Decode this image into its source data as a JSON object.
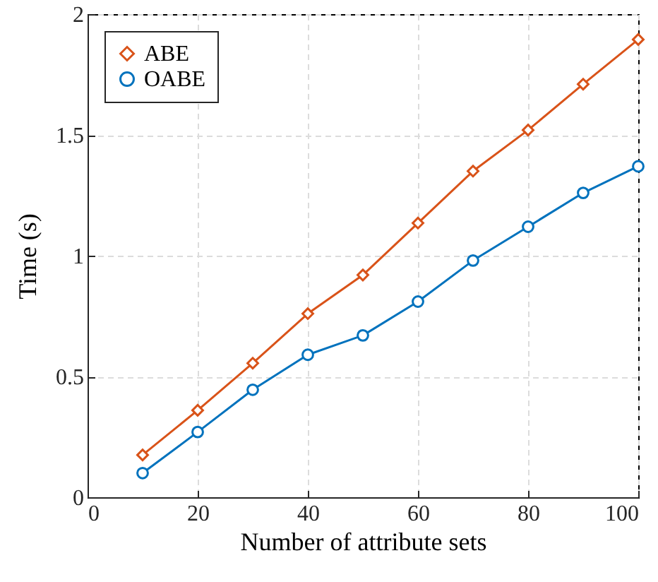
{
  "chart_data": {
    "type": "line",
    "xlabel": "Number of attribute sets",
    "ylabel": "Time (s)",
    "x": [
      10,
      20,
      30,
      40,
      50,
      60,
      70,
      80,
      90,
      100
    ],
    "series": [
      {
        "name": "ABE",
        "color": "#d95319",
        "marker": "diamond",
        "values": [
          0.175,
          0.36,
          0.555,
          0.76,
          0.92,
          1.135,
          1.35,
          1.52,
          1.71,
          1.895
        ]
      },
      {
        "name": "OABE",
        "color": "#0072bd",
        "marker": "circle",
        "values": [
          0.1,
          0.27,
          0.445,
          0.59,
          0.67,
          0.81,
          0.98,
          1.12,
          1.26,
          1.37
        ]
      }
    ],
    "xlim": [
      0,
      100
    ],
    "xticks": [
      0,
      20,
      40,
      60,
      80,
      100
    ],
    "ylim": [
      0,
      2
    ],
    "yticks": [
      0,
      0.5,
      1,
      1.5,
      2
    ],
    "grid": true,
    "legend": "top left",
    "line_style": "solid"
  }
}
